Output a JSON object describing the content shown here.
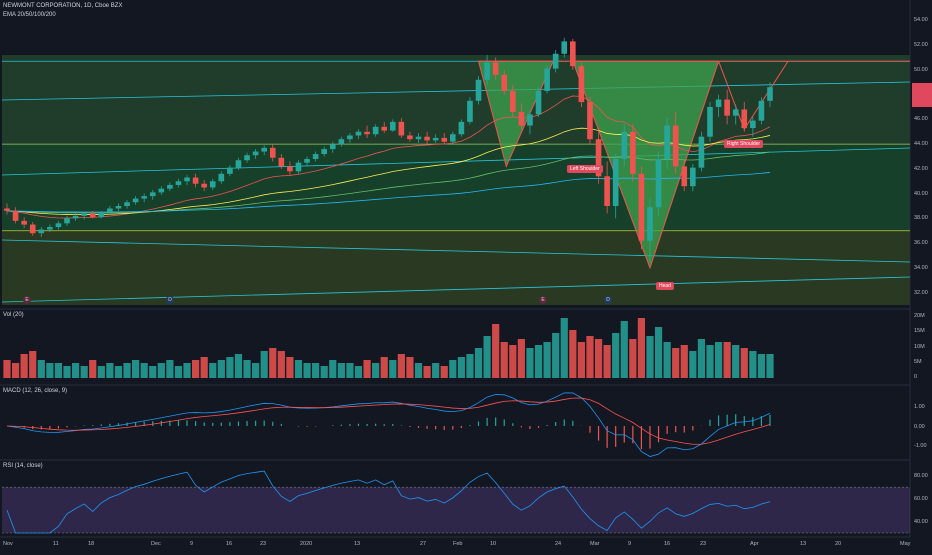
{
  "header": {
    "symbol_line": "NEWMONT CORPORATION, 1D, Cboe BZX",
    "ema_line": "EMA 20/50/100/200"
  },
  "panes": {
    "vol_label": "Vol (20)",
    "macd_label": "MACD (12, 26, close, 9)",
    "rsi_label": "RSI (14, close)"
  },
  "annotations": {
    "left_shoulder": "Left Shoulder",
    "head": "Head",
    "right_shoulder": "Right Shoulder"
  },
  "events": [
    "E",
    "D",
    "E",
    "D"
  ],
  "x_ticks": [
    "Nov",
    "11",
    "18",
    "Dec",
    "9",
    "16",
    "23",
    "2020",
    "13",
    "27",
    "Feb",
    "10",
    "24",
    "Mar",
    "9",
    "16",
    "23",
    "Apr",
    "13",
    "20",
    "May"
  ],
  "price_axis": [
    "54.00",
    "52.00",
    "50.00",
    "48.00",
    "46.00",
    "44.00",
    "42.00",
    "40.00",
    "38.00",
    "36.00",
    "34.00",
    "32.00"
  ],
  "vol_axis": [
    "20M",
    "15M",
    "10M",
    "5M",
    "0"
  ],
  "macd_axis": [
    "1.00",
    "0.00",
    "-1.00"
  ],
  "rsi_axis": [
    "80.00",
    "60.00",
    "40.00"
  ],
  "colors": {
    "background": "#131722",
    "up": "#26a69a",
    "down": "#ef5350",
    "pattern_fill": "#3fa34d",
    "pattern_line": "#ef5350",
    "macd": "#2196f3",
    "signal": "#ff5252",
    "rsi": "#7e57c2",
    "label_tag": "#e0485d"
  },
  "chart_data": {
    "type": "candlestick",
    "price_ylim": [
      31,
      55
    ],
    "candles": [
      [
        38.8,
        39.2,
        38.3,
        38.6
      ],
      [
        38.6,
        38.9,
        37.6,
        37.8
      ],
      [
        37.8,
        38.1,
        37.2,
        37.5
      ],
      [
        37.5,
        37.7,
        36.6,
        36.8
      ],
      [
        36.8,
        37.3,
        36.5,
        37.1
      ],
      [
        37.1,
        37.5,
        36.9,
        37.3
      ],
      [
        37.3,
        37.8,
        37.1,
        37.6
      ],
      [
        37.6,
        38.2,
        37.4,
        38.0
      ],
      [
        38.0,
        38.4,
        37.8,
        38.2
      ],
      [
        38.2,
        38.5,
        37.9,
        38.4
      ],
      [
        38.4,
        38.6,
        38.0,
        38.1
      ],
      [
        38.1,
        38.6,
        38.0,
        38.5
      ],
      [
        38.5,
        39.0,
        38.3,
        38.8
      ],
      [
        38.8,
        39.2,
        38.6,
        39.0
      ],
      [
        39.0,
        39.5,
        38.8,
        39.3
      ],
      [
        39.3,
        39.8,
        39.1,
        39.6
      ],
      [
        39.6,
        40.0,
        39.3,
        39.8
      ],
      [
        39.8,
        40.3,
        39.5,
        40.1
      ],
      [
        40.1,
        40.6,
        39.9,
        40.4
      ],
      [
        40.4,
        40.9,
        40.2,
        40.7
      ],
      [
        40.7,
        41.2,
        40.5,
        41.0
      ],
      [
        41.0,
        41.5,
        40.7,
        41.3
      ],
      [
        41.3,
        41.6,
        40.5,
        40.8
      ],
      [
        40.8,
        41.1,
        40.2,
        40.5
      ],
      [
        40.5,
        41.2,
        40.3,
        41.0
      ],
      [
        41.0,
        41.8,
        40.8,
        41.6
      ],
      [
        41.6,
        42.3,
        41.4,
        42.1
      ],
      [
        42.1,
        42.9,
        41.9,
        42.7
      ],
      [
        42.7,
        43.3,
        42.5,
        43.1
      ],
      [
        43.1,
        43.6,
        42.8,
        43.4
      ],
      [
        43.4,
        43.9,
        43.1,
        43.7
      ],
      [
        43.7,
        44.0,
        42.6,
        42.9
      ],
      [
        42.9,
        43.2,
        42.0,
        42.2
      ],
      [
        42.2,
        42.6,
        41.5,
        41.8
      ],
      [
        41.8,
        42.7,
        41.6,
        42.5
      ],
      [
        42.5,
        43.0,
        42.2,
        42.8
      ],
      [
        42.8,
        43.4,
        42.6,
        43.2
      ],
      [
        43.2,
        43.8,
        43.0,
        43.6
      ],
      [
        43.6,
        44.2,
        43.3,
        44.0
      ],
      [
        44.0,
        44.6,
        43.8,
        44.4
      ],
      [
        44.4,
        44.9,
        44.1,
        44.7
      ],
      [
        44.7,
        45.2,
        44.4,
        45.0
      ],
      [
        45.0,
        45.5,
        44.5,
        44.8
      ],
      [
        44.8,
        45.6,
        44.6,
        45.4
      ],
      [
        45.4,
        45.8,
        44.9,
        45.1
      ],
      [
        45.1,
        46.0,
        45.0,
        45.8
      ],
      [
        45.8,
        46.1,
        44.5,
        44.7
      ],
      [
        44.7,
        45.0,
        44.2,
        44.4
      ],
      [
        44.4,
        44.9,
        44.1,
        44.6
      ],
      [
        44.6,
        45.0,
        44.0,
        44.3
      ],
      [
        44.3,
        44.8,
        44.1,
        44.5
      ],
      [
        44.5,
        44.9,
        44.0,
        44.2
      ],
      [
        44.2,
        45.0,
        44.0,
        44.8
      ],
      [
        44.8,
        46.0,
        44.6,
        45.8
      ],
      [
        45.8,
        47.8,
        45.6,
        47.5
      ],
      [
        47.5,
        49.5,
        47.2,
        49.2
      ],
      [
        49.2,
        51.2,
        48.8,
        50.6
      ],
      [
        50.6,
        51.0,
        49.2,
        49.6
      ],
      [
        49.6,
        50.0,
        48.0,
        48.3
      ],
      [
        48.3,
        48.8,
        46.2,
        46.6
      ],
      [
        46.6,
        47.3,
        45.2,
        45.5
      ],
      [
        45.5,
        46.7,
        44.8,
        46.4
      ],
      [
        46.4,
        48.6,
        46.2,
        48.3
      ],
      [
        48.3,
        50.4,
        48.1,
        50.1
      ],
      [
        50.1,
        51.6,
        49.8,
        51.3
      ],
      [
        51.3,
        52.6,
        51.0,
        52.3
      ],
      [
        52.3,
        52.5,
        50.0,
        50.3
      ],
      [
        50.3,
        50.6,
        47.0,
        47.4
      ],
      [
        47.4,
        47.8,
        44.0,
        44.4
      ],
      [
        44.4,
        45.3,
        40.8,
        41.4
      ],
      [
        41.4,
        42.6,
        38.4,
        39.0
      ],
      [
        39.0,
        43.2,
        38.0,
        42.8
      ],
      [
        42.8,
        45.6,
        42.2,
        45.0
      ],
      [
        45.0,
        45.6,
        41.0,
        41.6
      ],
      [
        41.6,
        42.2,
        35.5,
        36.2
      ],
      [
        36.2,
        39.6,
        34.4,
        38.9
      ],
      [
        38.9,
        43.4,
        38.2,
        42.8
      ],
      [
        42.8,
        46.2,
        42.0,
        45.5
      ],
      [
        45.5,
        46.6,
        41.6,
        42.2
      ],
      [
        42.2,
        42.7,
        40.2,
        40.6
      ],
      [
        40.6,
        42.4,
        40.2,
        42.1
      ],
      [
        42.1,
        45.0,
        41.8,
        44.6
      ],
      [
        44.6,
        47.4,
        44.2,
        47.0
      ],
      [
        47.0,
        48.0,
        46.2,
        47.6
      ],
      [
        47.6,
        48.4,
        45.6,
        46.3
      ],
      [
        46.3,
        47.2,
        45.6,
        46.8
      ],
      [
        46.8,
        47.4,
        45.0,
        45.3
      ],
      [
        45.3,
        46.2,
        44.6,
        45.9
      ],
      [
        45.9,
        47.8,
        45.6,
        47.5
      ],
      [
        47.5,
        49.0,
        47.0,
        48.6
      ]
    ],
    "volume_millions": [
      6,
      5,
      8,
      9,
      6,
      5,
      5,
      4,
      5,
      4,
      6,
      4,
      5,
      4,
      5,
      6,
      5,
      4,
      5,
      6,
      4,
      5,
      6,
      7,
      5,
      6,
      7,
      8,
      6,
      5,
      9,
      10,
      9,
      7,
      6,
      5,
      5,
      4,
      6,
      5,
      5,
      4,
      6,
      5,
      7,
      6,
      8,
      7,
      5,
      4,
      5,
      4,
      6,
      7,
      8,
      10,
      14,
      18,
      12,
      11,
      13,
      10,
      11,
      12,
      15,
      20,
      16,
      12,
      14,
      13,
      11,
      15,
      19,
      13,
      20,
      14,
      17,
      12,
      10,
      11,
      9,
      13,
      11,
      12,
      12,
      11,
      10,
      9,
      8,
      8
    ]
  }
}
